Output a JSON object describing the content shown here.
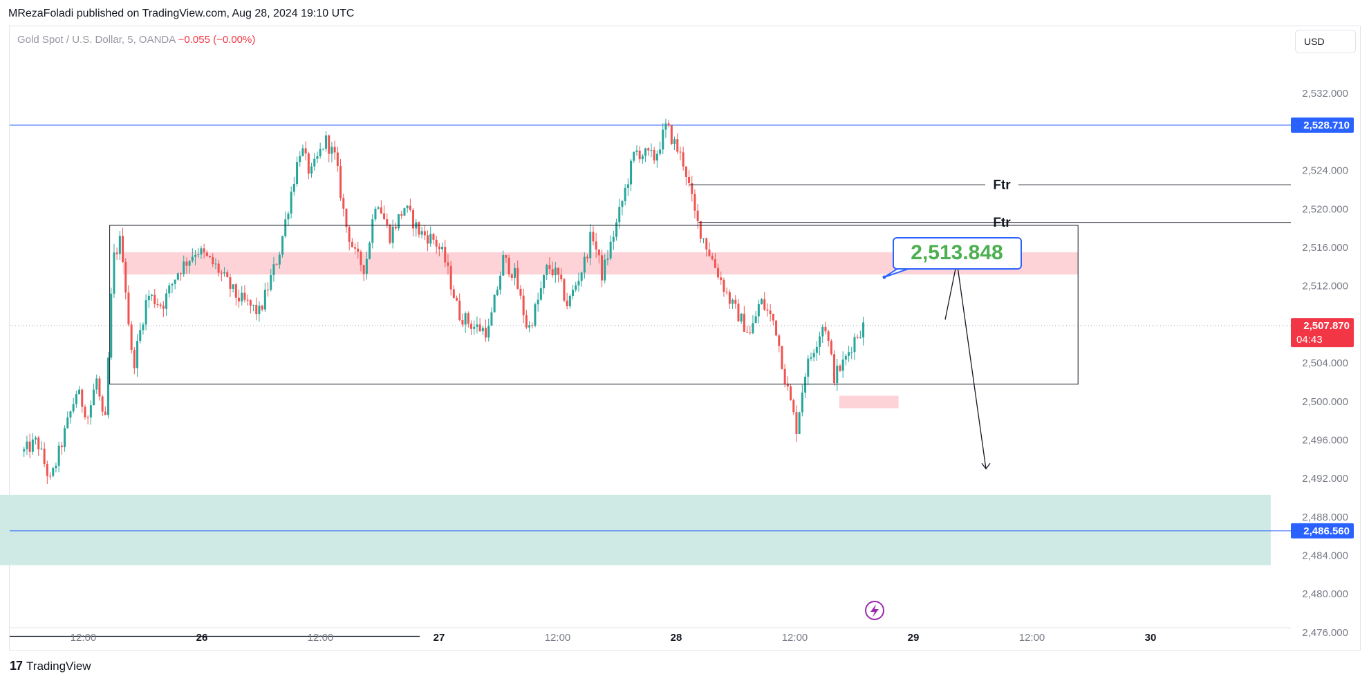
{
  "header": {
    "publisher_line": "MRezaFoladi published on TradingView.com, Aug 28, 2024 19:10 UTC"
  },
  "symbol": {
    "name": "Gold Spot / U.S. Dollar, 5, OANDA",
    "change": "−0.055 (−0.00%)"
  },
  "currency_button": "USD",
  "footer": {
    "logo_mark": "17",
    "brand": "TradingView"
  },
  "colors": {
    "up": "#26a69a",
    "down": "#ef5350",
    "blue_line": "#2962ff",
    "current_price": "#f23645",
    "callout_text": "#4caf50",
    "demand_zone": "#cfeae4",
    "supply_zone": "#fdd3d8"
  },
  "chart_data": {
    "type": "candlestick",
    "timeframe": "5",
    "y_axis_ticks": [
      "2,532.000",
      "2,524.000",
      "2,520.000",
      "2,516.000",
      "2,512.000",
      "2,504.000",
      "2,500.000",
      "2,496.000",
      "2,492.000",
      "2,488.000",
      "2,484.000",
      "2,480.000",
      "2,476.000"
    ],
    "x_axis_ticks": [
      "12:00",
      "26",
      "12:00",
      "27",
      "12:00",
      "28",
      "12:00",
      "29",
      "12:00",
      "30"
    ],
    "ylim": [
      2474.2,
      2537.4
    ],
    "price_labels": {
      "upper_level": "2,528.710",
      "lower_level": "2,486.560",
      "current_price": "2,507.870",
      "countdown": "04:43"
    },
    "levels": [
      {
        "name": "upper-blue-level",
        "price": 2528.71
      },
      {
        "name": "lower-blue-level",
        "price": 2486.56
      },
      {
        "name": "ftr-line-1",
        "price": 2522.5,
        "label": "Ftr"
      },
      {
        "name": "ftr-line-2",
        "price": 2518.6,
        "label": "Ftr"
      },
      {
        "name": "bottom-black-line",
        "price": 2475.6
      },
      {
        "name": "current-price-dotted",
        "price": 2507.87
      }
    ],
    "zones": [
      {
        "name": "range-box",
        "x": [
          "Aug 25 14:40",
          "Aug 29 16:40"
        ],
        "y": [
          2501.8,
          2518.3
        ]
      },
      {
        "name": "supply-zone",
        "x": [
          "Aug 25 16:00",
          "Aug 29 16:40"
        ],
        "y": [
          2513.2,
          2515.5
        ]
      },
      {
        "name": "small-supply-zone",
        "x": [
          "Aug 28 16:30",
          "Aug 28 22:30"
        ],
        "y": [
          2499.3,
          2500.6
        ]
      },
      {
        "name": "demand-zone",
        "x": [
          "Aug 25 03:00",
          "Aug 30 12:10"
        ],
        "y": [
          2483.0,
          2490.3
        ]
      }
    ],
    "callout": {
      "text": "2,513.848",
      "price": 2513.848
    },
    "projection": {
      "from": 2508.5,
      "peak": 2514.5,
      "target": 2493.0
    },
    "price_path": [
      [
        "Aug 25 06:00",
        2494.8
      ],
      [
        "Aug 25 07:20",
        2495.9
      ],
      [
        "Aug 25 08:40",
        2491.6
      ],
      [
        "Aug 25 10:40",
        2498.7
      ],
      [
        "Aug 25 11:20",
        2501.1
      ],
      [
        "Aug 25 12:30",
        2498.4
      ],
      [
        "Aug 25 13:20",
        2502.4
      ],
      [
        "Aug 25 14:10",
        2496.6
      ],
      [
        "Aug 25 15:00",
        2514.7
      ],
      [
        "Aug 25 15:50",
        2517.0
      ],
      [
        "Aug 25 17:00",
        2503.4
      ],
      [
        "Aug 25 18:30",
        2511.1
      ],
      [
        "Aug 25 20:00",
        2510.0
      ],
      [
        "Aug 25 21:30",
        2513.4
      ],
      [
        "Aug 25 23:30",
        2515.8
      ],
      [
        "Aug 26 01:30",
        2513.9
      ],
      [
        "Aug 26 03:30",
        2510.9
      ],
      [
        "Aug 26 05:50",
        2509.2
      ],
      [
        "Aug 26 07:50",
        2515.5
      ],
      [
        "Aug 26 09:00",
        2521.6
      ],
      [
        "Aug 26 10:00",
        2526.5
      ],
      [
        "Aug 26 11:00",
        2523.5
      ],
      [
        "Aug 26 12:30",
        2527.2
      ],
      [
        "Aug 26 13:30",
        2525.3
      ],
      [
        "Aug 26 14:30",
        2518.6
      ],
      [
        "Aug 26 15:30",
        2515.2
      ],
      [
        "Aug 26 16:30",
        2513.8
      ],
      [
        "Aug 26 17:40",
        2521.4
      ],
      [
        "Aug 26 19:00",
        2517.2
      ],
      [
        "Aug 26 20:30",
        2520.2
      ],
      [
        "Aug 26 22:00",
        2517.6
      ],
      [
        "Aug 26 23:30",
        2516.8
      ],
      [
        "Aug 27 00:30",
        2515.0
      ],
      [
        "Aug 27 02:00",
        2509.1
      ],
      [
        "Aug 27 03:30",
        2507.8
      ],
      [
        "Aug 27 05:00",
        2507.3
      ],
      [
        "Aug 27 06:30",
        2514.8
      ],
      [
        "Aug 27 07:40",
        2513.1
      ],
      [
        "Aug 27 09:00",
        2507.3
      ],
      [
        "Aug 27 10:00",
        2510.4
      ],
      [
        "Aug 27 11:00",
        2514.1
      ],
      [
        "Aug 27 12:00",
        2513.0
      ],
      [
        "Aug 27 13:00",
        2510.0
      ],
      [
        "Aug 27 14:40",
        2514.3
      ],
      [
        "Aug 27 15:30",
        2517.6
      ],
      [
        "Aug 27 16:30",
        2513.1
      ],
      [
        "Aug 27 18:00",
        2518.6
      ],
      [
        "Aug 27 19:50",
        2526.0
      ],
      [
        "Aug 27 21:50",
        2525.3
      ],
      [
        "Aug 27 23:00",
        2528.6
      ],
      [
        "Aug 28 00:50",
        2524.6
      ],
      [
        "Aug 28 02:00",
        2518.9
      ],
      [
        "Aug 28 03:30",
        2515.1
      ],
      [
        "Aug 28 05:30",
        2510.3
      ],
      [
        "Aug 28 07:30",
        2506.9
      ],
      [
        "Aug 28 08:30",
        2510.5
      ],
      [
        "Aug 28 10:00",
        2508.1
      ],
      [
        "Aug 28 11:00",
        2502.5
      ],
      [
        "Aug 28 12:10",
        2497.2
      ],
      [
        "Aug 28 13:00",
        2502.9
      ],
      [
        "Aug 28 14:00",
        2505.8
      ],
      [
        "Aug 28 15:00",
        2508.4
      ],
      [
        "Aug 28 16:00",
        2502.6
      ],
      [
        "Aug 28 17:00",
        2504.1
      ],
      [
        "Aug 28 18:00",
        2506.5
      ],
      [
        "Aug 28 19:00",
        2507.9
      ]
    ]
  }
}
